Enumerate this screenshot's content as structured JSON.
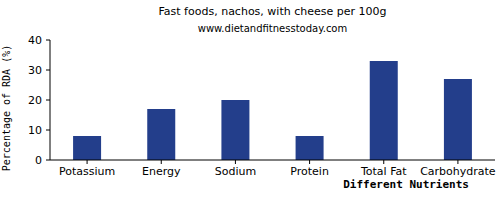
{
  "chart_data": {
    "type": "bar",
    "title": "Fast foods, nachos, with cheese per 100g",
    "subtitle": "www.dietandfitnesstoday.com",
    "x_label": "Different Nutrients",
    "y_label": "Percentage of RDA (%)",
    "categories": [
      "Potassium",
      "Energy",
      "Sodium",
      "Protein",
      "Total Fat",
      "Carbohydrate"
    ],
    "values": [
      8,
      17,
      20,
      8,
      33,
      27
    ],
    "color": "#233e8b",
    "ylim": [
      0,
      40
    ],
    "yticks": [
      0,
      10,
      20,
      30,
      40
    ],
    "grid": false
  }
}
